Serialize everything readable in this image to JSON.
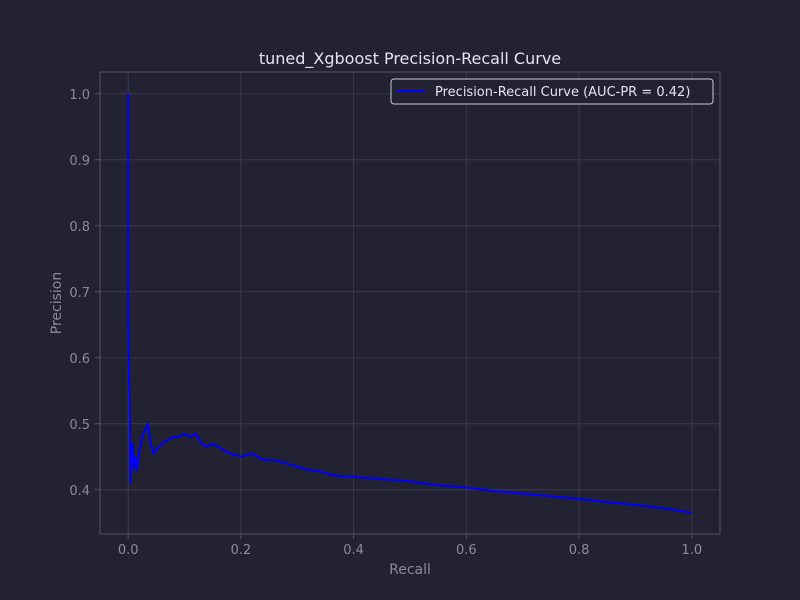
{
  "chart_data": {
    "type": "line",
    "title": "tuned_Xgboost Precision-Recall Curve",
    "xlabel": "Recall",
    "ylabel": "Precision",
    "xlim": [
      -0.05,
      1.05
    ],
    "ylim": [
      0.333,
      1.033
    ],
    "xticks": [
      "0.0",
      "0.2",
      "0.4",
      "0.6",
      "0.8",
      "1.0"
    ],
    "xtick_values": [
      0.0,
      0.2,
      0.4,
      0.6,
      0.8,
      1.0
    ],
    "yticks": [
      "0.4",
      "0.5",
      "0.6",
      "0.7",
      "0.8",
      "0.9",
      "1.0"
    ],
    "ytick_values": [
      0.4,
      0.5,
      0.6,
      0.7,
      0.8,
      0.9,
      1.0
    ],
    "grid": true,
    "legend_position": "top-right",
    "series": [
      {
        "name": "Precision-Recall Curve (AUC-PR = 0.42)",
        "color": "#0000ff",
        "x": [
          0.0,
          0.0,
          0.001,
          0.002,
          0.003,
          0.004,
          0.005,
          0.006,
          0.008,
          0.01,
          0.013,
          0.016,
          0.02,
          0.025,
          0.03,
          0.035,
          0.04,
          0.045,
          0.05,
          0.06,
          0.07,
          0.08,
          0.09,
          0.1,
          0.11,
          0.12,
          0.13,
          0.14,
          0.15,
          0.16,
          0.17,
          0.18,
          0.2,
          0.22,
          0.24,
          0.26,
          0.28,
          0.3,
          0.32,
          0.34,
          0.36,
          0.38,
          0.4,
          0.42,
          0.45,
          0.48,
          0.5,
          0.52,
          0.55,
          0.58,
          0.6,
          0.65,
          0.7,
          0.75,
          0.8,
          0.85,
          0.9,
          0.95,
          1.0
        ],
        "y": [
          1.0,
          0.67,
          0.6,
          0.55,
          0.5,
          0.41,
          0.47,
          0.44,
          0.47,
          0.43,
          0.45,
          0.43,
          0.46,
          0.48,
          0.49,
          0.5,
          0.47,
          0.455,
          0.46,
          0.47,
          0.475,
          0.48,
          0.48,
          0.485,
          0.48,
          0.485,
          0.47,
          0.465,
          0.47,
          0.465,
          0.46,
          0.455,
          0.45,
          0.455,
          0.445,
          0.445,
          0.44,
          0.435,
          0.43,
          0.428,
          0.423,
          0.42,
          0.42,
          0.418,
          0.416,
          0.414,
          0.413,
          0.41,
          0.407,
          0.405,
          0.403,
          0.398,
          0.394,
          0.39,
          0.386,
          0.381,
          0.377,
          0.372,
          0.365
        ]
      }
    ]
  }
}
